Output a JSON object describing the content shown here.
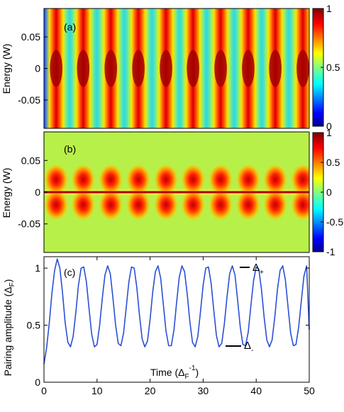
{
  "chart_data": [
    {
      "type": "heatmap",
      "panel_label": "(a)",
      "ylabel": "Energy (W)",
      "yticks": [
        "0.05",
        "0",
        "-0.05"
      ],
      "ytick_values": [
        0.05,
        0,
        -0.05
      ],
      "ylim": [
        -0.095,
        0.095
      ],
      "xlim": [
        0,
        50
      ],
      "colorbar_ticks": [
        "1",
        "0.5",
        "0"
      ],
      "colorbar_values": [
        1,
        0.5,
        0
      ],
      "colorbar_range": [
        0,
        1
      ],
      "colormap": "jet",
      "stripe_centers_time": [
        2.3,
        7.4,
        12.6,
        17.8,
        23.0,
        28.1,
        33.3,
        38.5,
        43.6,
        48.8
      ],
      "description_values": {
        "stripe_max": 1,
        "background": 0.45
      }
    },
    {
      "type": "heatmap",
      "panel_label": "(b)",
      "ylabel": "Energy (W)",
      "yticks": [
        "0.05",
        "0",
        "-0.05"
      ],
      "ytick_values": [
        0.05,
        0,
        -0.05
      ],
      "ylim": [
        -0.095,
        0.095
      ],
      "xlim": [
        0,
        50
      ],
      "colorbar_ticks": [
        "1",
        "0.5",
        "0",
        "-0.5",
        "-1"
      ],
      "colorbar_values": [
        1,
        0.5,
        0,
        -0.5,
        -1
      ],
      "colorbar_range": [
        -1,
        1
      ],
      "colormap": "jet",
      "blob_centers_time": [
        2.3,
        7.4,
        12.6,
        17.8,
        23.0,
        28.1,
        33.3,
        38.5,
        43.6,
        48.8
      ],
      "blob_energy_offset": 0.02
    },
    {
      "type": "line",
      "panel_label": "(c)",
      "xlabel": "Time (Δ",
      "xlabel_sub": "F",
      "xlabel_sup": "-1",
      "xlabel_end": ")",
      "ylabel": "Pairing amplitude (Δ",
      "ylabel_sub": "F",
      "ylabel_end": ")",
      "xlim": [
        0,
        50
      ],
      "ylim": [
        0,
        1.1
      ],
      "xticks": [
        "0",
        "10",
        "20",
        "30",
        "40",
        "50"
      ],
      "xtick_values": [
        0,
        10,
        20,
        30,
        40,
        50
      ],
      "yticks": [
        "0",
        "0.5",
        "1"
      ],
      "ytick_values": [
        0,
        0.5,
        1
      ],
      "annotations": [
        {
          "text": "Δ",
          "sub": "+",
          "x": 38.2,
          "y": 1.045
        },
        {
          "text": "Δ",
          "sub": "-",
          "x": 35.8,
          "y": 0.315
        }
      ],
      "series": [
        {
          "color": "#2a4fd6",
          "x": [
            0,
            0.5,
            1.0,
            1.5,
            2.0,
            2.5,
            3.0,
            3.5,
            4.0,
            4.5,
            5.0,
            5.5,
            6.0,
            6.5,
            7.0,
            7.5,
            8.0,
            8.5,
            9.0,
            9.5,
            10.0,
            10.5,
            11.0,
            11.5,
            12.0,
            12.5,
            13.0,
            13.5,
            14.0,
            14.5,
            15.0,
            15.5,
            16.0,
            16.5,
            17.0,
            17.5,
            18.0,
            18.5,
            19.0,
            19.5,
            20.0,
            20.5,
            21.0,
            21.5,
            22.0,
            22.5,
            23.0,
            23.5,
            24.0,
            24.5,
            25.0,
            25.5,
            26.0,
            26.5,
            27.0,
            27.5,
            28.0,
            28.5,
            29.0,
            29.5,
            30.0,
            30.5,
            31.0,
            31.5,
            32.0,
            32.5,
            33.0,
            33.5,
            34.0,
            34.5,
            35.0,
            35.5,
            36.0,
            36.5,
            37.0,
            37.5,
            38.0,
            38.5,
            39.0,
            39.5,
            40.0,
            40.5,
            41.0,
            41.5,
            42.0,
            42.5,
            43.0,
            43.5,
            44.0,
            44.5,
            45.0,
            45.5,
            46.0,
            46.5,
            47.0,
            47.5,
            48.0,
            48.5,
            49.0,
            49.5,
            50.0
          ],
          "y": [
            0.16,
            0.3,
            0.52,
            0.78,
            0.98,
            1.08,
            1.0,
            0.78,
            0.52,
            0.35,
            0.31,
            0.4,
            0.61,
            0.85,
            1.0,
            1.01,
            0.88,
            0.64,
            0.42,
            0.31,
            0.33,
            0.5,
            0.74,
            0.94,
            1.02,
            0.95,
            0.74,
            0.5,
            0.34,
            0.32,
            0.43,
            0.65,
            0.88,
            1.01,
            1.0,
            0.83,
            0.59,
            0.38,
            0.31,
            0.36,
            0.55,
            0.79,
            0.97,
            1.02,
            0.91,
            0.68,
            0.45,
            0.32,
            0.32,
            0.46,
            0.7,
            0.92,
            1.02,
            0.97,
            0.77,
            0.53,
            0.35,
            0.31,
            0.4,
            0.62,
            0.85,
            1.0,
            1.01,
            0.87,
            0.63,
            0.41,
            0.31,
            0.34,
            0.51,
            0.75,
            0.95,
            1.02,
            0.94,
            0.72,
            0.48,
            0.33,
            0.32,
            0.44,
            0.67,
            0.89,
            1.01,
            0.99,
            0.81,
            0.57,
            0.37,
            0.31,
            0.37,
            0.57,
            0.81,
            0.98,
            1.02,
            0.9,
            0.66,
            0.43,
            0.32,
            0.33,
            0.48,
            0.71,
            0.93,
            1.02,
            0.46
          ]
        }
      ]
    }
  ]
}
